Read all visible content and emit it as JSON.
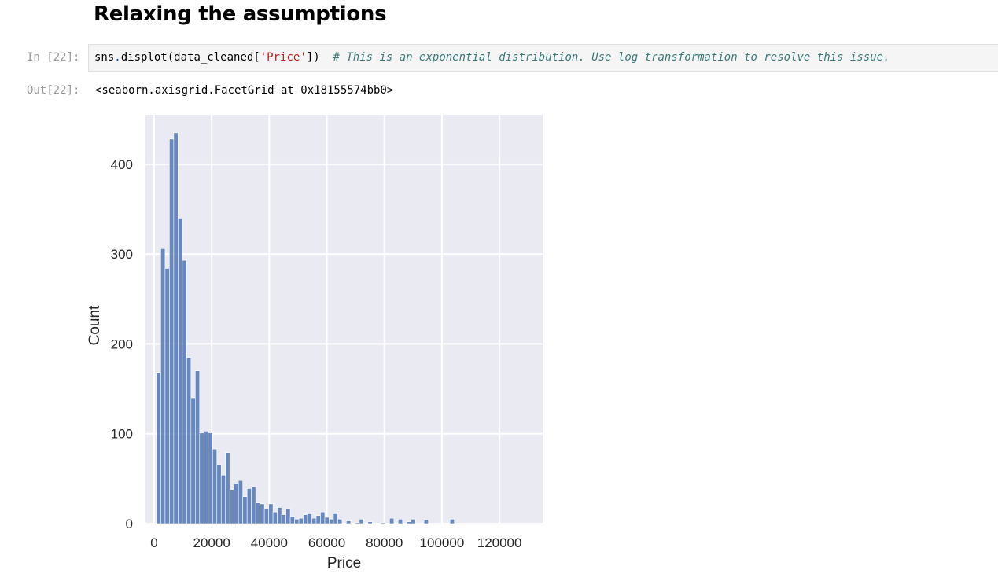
{
  "heading": "Relaxing the assumptions",
  "cell_in": {
    "prompt": "In [22]:",
    "code": {
      "part1": "sns",
      "dot": ".",
      "part2": "displot(data_cleaned[",
      "string": "'Price'",
      "part3": "])  ",
      "comment": "# This is an exponential distribution. Use log transformation to resolve this issue."
    }
  },
  "cell_out": {
    "prompt": "Out[22]:",
    "text": "<seaborn.axisgrid.FacetGrid at 0x18155574bb0>"
  },
  "chart_data": {
    "type": "bar",
    "title": "",
    "xlabel": "Price",
    "ylabel": "Count",
    "xlim": [
      -3000,
      135000
    ],
    "ylim": [
      0,
      455
    ],
    "x_ticks": [
      0,
      20000,
      40000,
      60000,
      80000,
      100000,
      120000
    ],
    "y_ticks": [
      0,
      100,
      200,
      300,
      400
    ],
    "grid": true,
    "bar_color": "#4c72b0",
    "background_color": "#eaeaf2",
    "bin_width": 1500,
    "bins_start": 800,
    "counts": [
      168,
      306,
      284,
      428,
      435,
      340,
      293,
      185,
      140,
      170,
      101,
      103,
      101,
      83,
      65,
      54,
      79,
      38,
      45,
      48,
      30,
      39,
      41,
      23,
      22,
      16,
      22,
      13,
      18,
      10,
      16,
      8,
      5,
      6,
      10,
      11,
      6,
      9,
      13,
      7,
      5,
      11,
      5,
      0,
      3,
      0,
      1,
      5,
      0,
      2,
      0,
      0,
      1,
      0,
      6,
      0,
      5,
      0,
      2,
      5,
      0,
      0,
      4,
      0,
      0,
      0,
      0,
      0,
      5,
      0
    ]
  }
}
